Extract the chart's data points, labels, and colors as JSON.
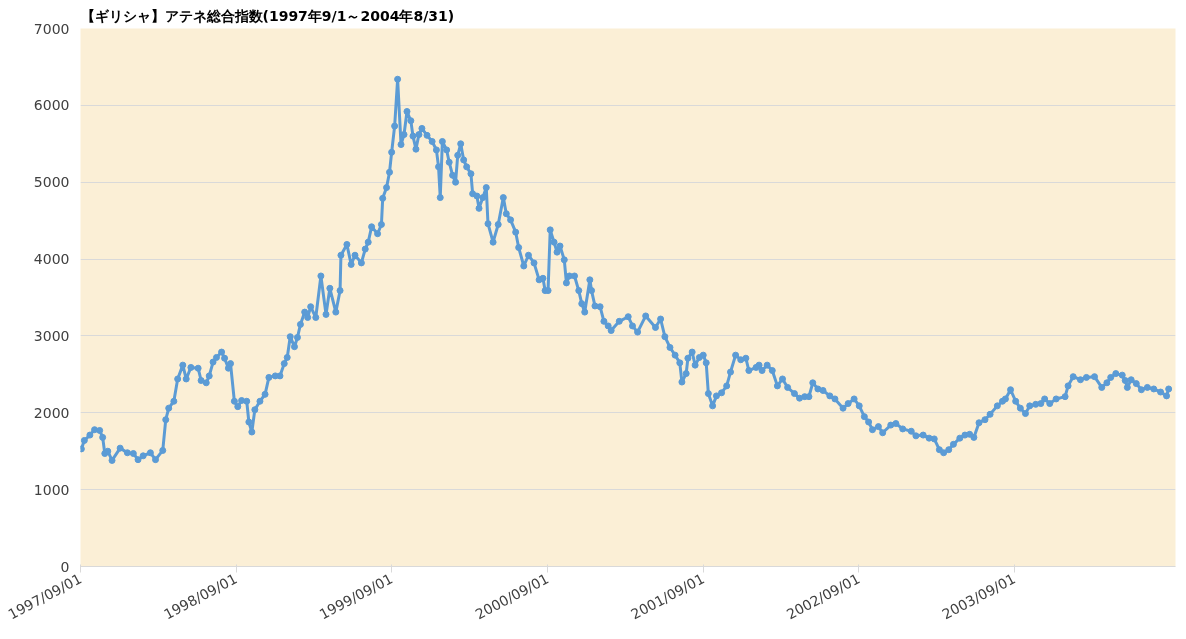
{
  "chart_data": {
    "type": "line",
    "title": "【ギリシャ】アテネ総合指数(1997年9/1～2004年8/31)",
    "x": [
      "1997-09-03",
      "1997-09-10",
      "1997-09-23",
      "1997-10-04",
      "1997-10-16",
      "1997-10-23",
      "1997-10-28",
      "1997-11-04",
      "1997-11-14",
      "1997-12-03",
      "1997-12-20",
      "1998-01-03",
      "1998-01-14",
      "1998-01-26",
      "1998-02-12",
      "1998-02-24",
      "1998-03-13",
      "1998-03-20",
      "1998-03-27",
      "1998-04-08",
      "1998-04-17",
      "1998-04-29",
      "1998-05-07",
      "1998-05-18",
      "1998-06-04",
      "1998-06-11",
      "1998-06-23",
      "1998-06-30",
      "1998-07-09",
      "1998-07-17",
      "1998-07-29",
      "1998-08-05",
      "1998-08-14",
      "1998-08-19",
      "1998-08-28",
      "1998-09-05",
      "1998-09-14",
      "1998-09-26",
      "1998-10-01",
      "1998-10-08",
      "1998-10-15",
      "1998-10-27",
      "1998-11-08",
      "1998-11-17",
      "1998-12-02",
      "1998-12-13",
      "1998-12-23",
      "1998-12-30",
      "1999-01-06",
      "1999-01-16",
      "1999-01-23",
      "1999-01-30",
      "1999-02-09",
      "1999-02-16",
      "1999-02-23",
      "1999-03-07",
      "1999-03-19",
      "1999-03-31",
      "1999-04-09",
      "1999-04-23",
      "1999-05-03",
      "1999-05-05",
      "1999-05-19",
      "1999-05-29",
      "1999-06-07",
      "1999-06-22",
      "1999-07-01",
      "1999-07-08",
      "1999-07-16",
      "1999-07-30",
      "1999-08-08",
      "1999-08-11",
      "1999-08-20",
      "1999-08-27",
      "1999-09-01",
      "1999-09-08",
      "1999-09-15",
      "1999-09-23",
      "1999-09-30",
      "1999-10-07",
      "1999-10-16",
      "1999-10-21",
      "1999-10-28",
      "1999-11-04",
      "1999-11-11",
      "1999-11-23",
      "1999-12-05",
      "1999-12-15",
      "1999-12-20",
      "1999-12-24",
      "1999-12-29",
      "2000-01-08",
      "2000-01-14",
      "2000-01-22",
      "2000-01-29",
      "2000-02-03",
      "2000-02-10",
      "2000-02-17",
      "2000-02-24",
      "2000-03-05",
      "2000-03-09",
      "2000-03-19",
      "2000-03-24",
      "2000-04-02",
      "2000-04-10",
      "2000-04-14",
      "2000-04-26",
      "2000-05-08",
      "2000-05-20",
      "2000-05-27",
      "2000-06-06",
      "2000-06-18",
      "2000-06-25",
      "2000-07-07",
      "2000-07-18",
      "2000-07-31",
      "2000-08-12",
      "2000-08-21",
      "2000-08-26",
      "2000-09-02",
      "2000-09-07",
      "2000-09-16",
      "2000-09-23",
      "2000-09-30",
      "2000-10-10",
      "2000-10-15",
      "2000-10-22",
      "2000-11-03",
      "2000-11-13",
      "2000-11-20",
      "2000-11-27",
      "2000-12-09",
      "2000-12-13",
      "2000-12-21",
      "2001-01-02",
      "2001-01-11",
      "2001-01-21",
      "2001-01-28",
      "2001-02-16",
      "2001-03-09",
      "2001-03-19",
      "2001-03-31",
      "2001-04-19",
      "2001-05-12",
      "2001-05-24",
      "2001-06-03",
      "2001-06-15",
      "2001-06-27",
      "2001-07-08",
      "2001-07-13",
      "2001-07-23",
      "2001-07-27",
      "2001-08-06",
      "2001-08-13",
      "2001-08-23",
      "2001-09-01",
      "2001-09-08",
      "2001-09-13",
      "2001-09-23",
      "2001-10-02",
      "2001-10-14",
      "2001-10-26",
      "2001-11-04",
      "2001-11-16",
      "2001-11-28",
      "2001-12-10",
      "2001-12-17",
      "2002-01-03",
      "2002-01-10",
      "2002-01-17",
      "2002-01-29",
      "2002-02-10",
      "2002-02-22",
      "2002-03-06",
      "2002-03-18",
      "2002-04-03",
      "2002-04-15",
      "2002-04-27",
      "2002-05-07",
      "2002-05-16",
      "2002-05-28",
      "2002-06-09",
      "2002-06-25",
      "2002-07-07",
      "2002-07-26",
      "2002-08-07",
      "2002-08-21",
      "2002-09-02",
      "2002-09-14",
      "2002-09-24",
      "2002-10-03",
      "2002-10-17",
      "2002-10-27",
      "2002-11-15",
      "2002-11-27",
      "2002-12-13",
      "2003-01-02",
      "2003-01-13",
      "2003-01-30",
      "2003-02-13",
      "2003-02-25",
      "2003-03-09",
      "2003-03-19",
      "2003-03-31",
      "2003-04-11",
      "2003-04-26",
      "2003-05-08",
      "2003-05-19",
      "2003-05-29",
      "2003-06-10",
      "2003-06-24",
      "2003-07-06",
      "2003-07-23",
      "2003-08-04",
      "2003-08-11",
      "2003-08-23",
      "2003-09-04",
      "2003-09-15",
      "2003-09-27",
      "2003-10-07",
      "2003-10-21",
      "2003-11-02",
      "2003-11-11",
      "2003-11-23",
      "2003-12-08",
      "2003-12-29",
      "2004-01-05",
      "2004-01-17",
      "2004-02-03",
      "2004-02-17",
      "2004-03-07",
      "2004-03-24",
      "2004-04-05",
      "2004-04-14",
      "2004-04-26",
      "2004-05-11",
      "2004-05-18",
      "2004-05-23",
      "2004-06-01",
      "2004-06-13",
      "2004-06-25",
      "2004-07-09",
      "2004-07-24",
      "2004-08-09",
      "2004-08-23",
      "2004-08-28"
    ],
    "series": [
      {
        "color": "#5b9bd5",
        "values": [
          1530,
          1640,
          1710,
          1780,
          1770,
          1680,
          1470,
          1500,
          1380,
          1540,
          1480,
          1470,
          1390,
          1440,
          1480,
          1390,
          1510,
          1910,
          2060,
          2150,
          2440,
          2620,
          2440,
          2590,
          2580,
          2420,
          2390,
          2480,
          2660,
          2720,
          2790,
          2710,
          2580,
          2640,
          2150,
          2080,
          2160,
          2150,
          1880,
          1750,
          2040,
          2150,
          2240,
          2460,
          2480,
          2480,
          2640,
          2720,
          2990,
          2860,
          2980,
          3150,
          3310,
          3240,
          3380,
          3240,
          3780,
          3280,
          3620,
          3310,
          3590,
          4050,
          4190,
          3930,
          4050,
          3950,
          4130,
          4220,
          4420,
          4330,
          4450,
          4790,
          4930,
          5130,
          5390,
          5730,
          6340,
          5490,
          5620,
          5920,
          5800,
          5600,
          5430,
          5620,
          5700,
          5610,
          5530,
          5420,
          5200,
          4800,
          5530,
          5420,
          5260,
          5090,
          5000,
          5350,
          5500,
          5290,
          5200,
          5110,
          4850,
          4820,
          4660,
          4800,
          4930,
          4460,
          4220,
          4450,
          4800,
          4590,
          4510,
          4350,
          4150,
          3910,
          4050,
          3950,
          3730,
          3750,
          3590,
          3590,
          4380,
          4220,
          4090,
          4170,
          3990,
          3690,
          3780,
          3780,
          3590,
          3420,
          3310,
          3730,
          3590,
          3390,
          3380,
          3190,
          3130,
          3070,
          3190,
          3250,
          3130,
          3050,
          3260,
          3110,
          3220,
          2990,
          2850,
          2750,
          2650,
          2400,
          2510,
          2710,
          2790,
          2620,
          2720,
          2750,
          2650,
          2250,
          2090,
          2220,
          2260,
          2350,
          2530,
          2750,
          2690,
          2710,
          2550,
          2590,
          2620,
          2550,
          2620,
          2550,
          2350,
          2440,
          2330,
          2250,
          2190,
          2210,
          2210,
          2390,
          2310,
          2290,
          2220,
          2180,
          2060,
          2120,
          2180,
          2090,
          1950,
          1880,
          1780,
          1820,
          1740,
          1840,
          1860,
          1790,
          1760,
          1700,
          1710,
          1670,
          1660,
          1520,
          1480,
          1520,
          1590,
          1670,
          1710,
          1720,
          1680,
          1870,
          1910,
          1980,
          2090,
          2150,
          2180,
          2300,
          2150,
          2060,
          1990,
          2090,
          2110,
          2120,
          2180,
          2120,
          2180,
          2210,
          2350,
          2470,
          2430,
          2460,
          2470,
          2330,
          2390,
          2460,
          2510,
          2490,
          2420,
          2330,
          2430,
          2380,
          2300,
          2330,
          2310,
          2270,
          2220,
          2310
        ]
      }
    ],
    "xlim": [
      "1997-09-01",
      "2004-09-13"
    ],
    "xticks": [
      {
        "value": "1997-09-01",
        "label": "1997/09/01"
      },
      {
        "value": "1998-09-01",
        "label": "1998/09/01"
      },
      {
        "value": "1999-09-01",
        "label": "1999/09/01"
      },
      {
        "value": "2000-09-01",
        "label": "2000/09/01"
      },
      {
        "value": "2001-09-01",
        "label": "2001/09/01"
      },
      {
        "value": "2002-09-01",
        "label": "2002/09/01"
      },
      {
        "value": "2003-09-01",
        "label": "2003/09/01"
      }
    ],
    "ylim": [
      0,
      7000
    ],
    "yticks": [
      0,
      1000,
      2000,
      3000,
      4000,
      5000,
      6000,
      7000
    ],
    "grid": "y",
    "marker": "circle",
    "line_style": "solid"
  }
}
